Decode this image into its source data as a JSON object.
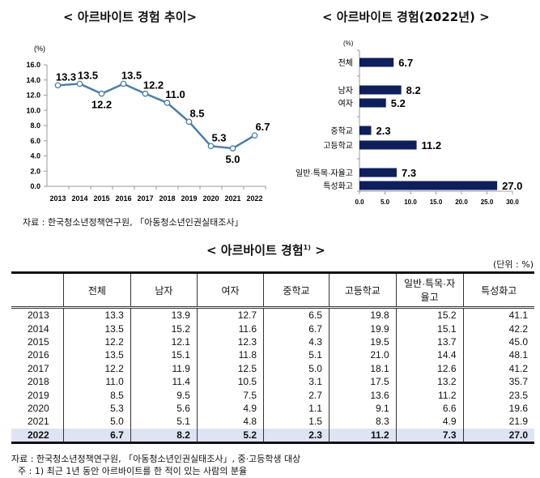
{
  "line_title": "< 아르바이트 경험 추이>",
  "bar_title": "< 아르바이트 경험(2022년) >",
  "table_title": "< 아르바이트 경험",
  "table_title_sup": "1)",
  "table_title_end": " >",
  "source_top": "자료 : 한국청소년정책연구원, 「아동청소년인권실태조사」",
  "unit": "(단위 : %)",
  "source_bottom": "자료 : 한국청소년정책연구원, 「아동청소년인권실태조사」, 중·고등학생 대상",
  "note": "주 : 1) 최근 1년 동안 아르바이트를 한 적이 있는 사람의 분율",
  "chart_data": [
    {
      "type": "line",
      "ylabel": "(%)",
      "categories": [
        "2013",
        "2014",
        "2015",
        "2016",
        "2017",
        "2018",
        "2019",
        "2020",
        "2021",
        "2022"
      ],
      "values": [
        13.3,
        13.5,
        12.2,
        13.5,
        12.2,
        11.0,
        8.5,
        5.3,
        5.0,
        6.7
      ],
      "labels": [
        "13.3",
        "13.5",
        "12.2",
        "13.5",
        "12.2",
        "11.0",
        "8.5",
        "5.3",
        "5.0",
        "6.7"
      ],
      "ylim": [
        0,
        16
      ],
      "yticks": [
        "0.0",
        "2.0",
        "4.0",
        "6.0",
        "8.0",
        "10.0",
        "12.0",
        "14.0",
        "16.0"
      ],
      "color": "#4a7eab",
      "grid": false
    },
    {
      "type": "bar",
      "orientation": "horizontal",
      "ylabel": "(%)",
      "categories": [
        "전체",
        "남자",
        "여자",
        "중학교",
        "고등학교",
        "일반·특목·자율고",
        "특성화고"
      ],
      "values": [
        6.7,
        8.2,
        5.2,
        2.3,
        11.2,
        7.3,
        27.0
      ],
      "labels": [
        "6.7",
        "8.2",
        "5.2",
        "2.3",
        "11.2",
        "7.3",
        "27.0"
      ],
      "xlim": [
        0,
        30
      ],
      "xticks": [
        "0.0",
        "5.0",
        "10.0",
        "15.0",
        "20.0",
        "25.0",
        "30.0"
      ],
      "color": "#0f1f5c",
      "grid": false
    },
    {
      "type": "table",
      "headers": [
        "",
        "전체",
        "남자",
        "여자",
        "중학교",
        "고등학교",
        "일반·특목·자율고",
        "특성화고"
      ],
      "rows": [
        [
          "2013",
          "13.3",
          "13.9",
          "12.7",
          "6.5",
          "19.8",
          "15.2",
          "41.1"
        ],
        [
          "2014",
          "13.5",
          "15.2",
          "11.6",
          "6.7",
          "19.9",
          "15.1",
          "42.2"
        ],
        [
          "2015",
          "12.2",
          "12.1",
          "12.3",
          "4.3",
          "19.5",
          "13.7",
          "45.0"
        ],
        [
          "2016",
          "13.5",
          "15.1",
          "11.8",
          "5.1",
          "21.0",
          "14.4",
          "48.1"
        ],
        [
          "2017",
          "12.2",
          "11.9",
          "12.5",
          "5.0",
          "18.1",
          "12.6",
          "41.2"
        ],
        [
          "2018",
          "11.0",
          "11.4",
          "10.5",
          "3.1",
          "17.5",
          "13.2",
          "35.7"
        ],
        [
          "2019",
          "8.5",
          "9.5",
          "7.5",
          "2.7",
          "13.6",
          "11.2",
          "23.5"
        ],
        [
          "2020",
          "5.3",
          "5.6",
          "4.9",
          "1.1",
          "9.1",
          "6.6",
          "19.6"
        ],
        [
          "2021",
          "5.0",
          "5.1",
          "4.8",
          "1.5",
          "8.3",
          "4.9",
          "21.9"
        ],
        [
          "2022",
          "6.7",
          "8.2",
          "5.2",
          "2.3",
          "11.2",
          "7.3",
          "27.0"
        ]
      ],
      "highlight_color": "#dfe4f4"
    }
  ]
}
